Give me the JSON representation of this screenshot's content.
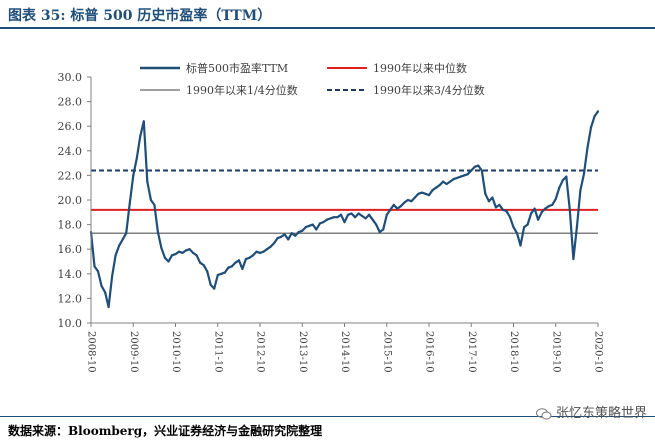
{
  "header": {
    "title": "图表 35:  标普 500 历史市盈率（TTM）"
  },
  "footer": {
    "source": "数据来源：Bloomberg，兴业证券经济与金融研究院整理"
  },
  "watermark": {
    "text": "张忆东策略世界",
    "icon": "wechat-icon"
  },
  "colors": {
    "series": "#1f4e79",
    "median": "#e02020",
    "q1": "#7f7f7f",
    "q3": "#1f3864",
    "axis": "#808080",
    "text": "#404040"
  },
  "chart_data": {
    "type": "line",
    "title": "",
    "xlabel": "",
    "ylabel": "",
    "ylim": [
      10,
      30
    ],
    "yticks": [
      "10.0",
      "12.0",
      "14.0",
      "16.0",
      "18.0",
      "20.0",
      "22.0",
      "24.0",
      "26.0",
      "28.0",
      "30.0"
    ],
    "xticks": [
      "2008-10",
      "2009-10",
      "2010-10",
      "2011-10",
      "2012-10",
      "2013-10",
      "2014-10",
      "2015-10",
      "2016-10",
      "2017-10",
      "2018-10",
      "2019-10",
      "2020-10"
    ],
    "xlim": [
      "2008-10",
      "2020-10"
    ],
    "legend": [
      "标普500市盈率TTM",
      "1990年以来中位数",
      "1990年以来1/4分位数",
      "1990年以来3/4分位数"
    ],
    "legend_position": "top",
    "grid": false,
    "reference_lines": [
      {
        "name": "1990年以来中位数",
        "value": 19.2,
        "style": "solid",
        "color": "#e02020"
      },
      {
        "name": "1990年以来1/4分位数",
        "value": 17.3,
        "style": "solid",
        "color": "#7f7f7f"
      },
      {
        "name": "1990年以来3/4分位数",
        "value": 22.4,
        "style": "dashed",
        "color": "#1f3864"
      }
    ],
    "series": [
      {
        "name": "标普500市盈率TTM",
        "x": [
          "2008-10",
          "2008-11",
          "2008-12",
          "2009-01",
          "2009-02",
          "2009-03",
          "2009-04",
          "2009-05",
          "2009-06",
          "2009-07",
          "2009-08",
          "2009-09",
          "2009-10",
          "2009-11",
          "2009-12",
          "2010-01",
          "2010-02",
          "2010-03",
          "2010-04",
          "2010-05",
          "2010-06",
          "2010-07",
          "2010-08",
          "2010-09",
          "2010-10",
          "2010-11",
          "2010-12",
          "2011-01",
          "2011-02",
          "2011-03",
          "2011-04",
          "2011-05",
          "2011-06",
          "2011-07",
          "2011-08",
          "2011-09",
          "2011-10",
          "2011-11",
          "2011-12",
          "2012-01",
          "2012-02",
          "2012-03",
          "2012-04",
          "2012-05",
          "2012-06",
          "2012-07",
          "2012-08",
          "2012-09",
          "2012-10",
          "2012-11",
          "2012-12",
          "2013-01",
          "2013-02",
          "2013-03",
          "2013-04",
          "2013-05",
          "2013-06",
          "2013-07",
          "2013-08",
          "2013-09",
          "2013-10",
          "2013-11",
          "2013-12",
          "2014-01",
          "2014-02",
          "2014-03",
          "2014-04",
          "2014-05",
          "2014-06",
          "2014-07",
          "2014-08",
          "2014-09",
          "2014-10",
          "2014-11",
          "2014-12",
          "2015-01",
          "2015-02",
          "2015-03",
          "2015-04",
          "2015-05",
          "2015-06",
          "2015-07",
          "2015-08",
          "2015-09",
          "2015-10",
          "2015-11",
          "2015-12",
          "2016-01",
          "2016-02",
          "2016-03",
          "2016-04",
          "2016-05",
          "2016-06",
          "2016-07",
          "2016-08",
          "2016-09",
          "2016-10",
          "2016-11",
          "2016-12",
          "2017-01",
          "2017-02",
          "2017-03",
          "2017-04",
          "2017-05",
          "2017-06",
          "2017-07",
          "2017-08",
          "2017-09",
          "2017-10",
          "2017-11",
          "2017-12",
          "2018-01",
          "2018-02",
          "2018-03",
          "2018-04",
          "2018-05",
          "2018-06",
          "2018-07",
          "2018-08",
          "2018-09",
          "2018-10",
          "2018-11",
          "2018-12",
          "2019-01",
          "2019-02",
          "2019-03",
          "2019-04",
          "2019-05",
          "2019-06",
          "2019-07",
          "2019-08",
          "2019-09",
          "2019-10",
          "2019-11",
          "2019-12",
          "2020-01",
          "2020-02",
          "2020-03",
          "2020-04",
          "2020-05",
          "2020-06",
          "2020-07",
          "2020-08",
          "2020-09",
          "2020-10"
        ],
        "values": [
          17.4,
          14.6,
          14.2,
          13.0,
          12.5,
          11.3,
          13.8,
          15.5,
          16.3,
          16.8,
          17.3,
          19.7,
          22.0,
          23.4,
          25.2,
          26.4,
          21.5,
          20.0,
          19.6,
          17.4,
          16.1,
          15.3,
          15.0,
          15.5,
          15.6,
          15.8,
          15.7,
          15.9,
          16.0,
          15.7,
          15.5,
          14.9,
          14.7,
          14.2,
          13.1,
          12.8,
          13.9,
          14.0,
          14.1,
          14.5,
          14.6,
          14.9,
          15.1,
          14.4,
          15.2,
          15.3,
          15.5,
          15.8,
          15.7,
          15.8,
          16.0,
          16.2,
          16.5,
          16.9,
          17.0,
          17.2,
          16.8,
          17.3,
          17.1,
          17.4,
          17.5,
          17.8,
          17.9,
          18.0,
          17.6,
          18.1,
          18.2,
          18.4,
          18.5,
          18.6,
          18.6,
          18.8,
          18.2,
          18.8,
          18.9,
          18.6,
          18.9,
          18.7,
          18.5,
          18.8,
          18.4,
          18.0,
          17.4,
          17.6,
          18.8,
          19.2,
          19.6,
          19.3,
          19.5,
          19.8,
          20.0,
          19.9,
          20.2,
          20.5,
          20.6,
          20.5,
          20.4,
          20.8,
          21.0,
          21.2,
          21.5,
          21.3,
          21.5,
          21.7,
          21.8,
          21.9,
          22.0,
          22.1,
          22.4,
          22.7,
          22.8,
          22.4,
          20.5,
          19.9,
          20.2,
          19.4,
          19.6,
          19.2,
          19.1,
          18.6,
          17.8,
          17.3,
          16.3,
          17.8,
          18.0,
          18.9,
          19.3,
          18.4,
          19.0,
          19.3,
          19.5,
          19.6,
          20.1,
          21.0,
          21.6,
          21.9,
          19.2,
          15.2,
          17.8,
          20.8,
          22.1,
          24.2,
          25.9,
          26.8,
          27.2
        ]
      }
    ]
  }
}
